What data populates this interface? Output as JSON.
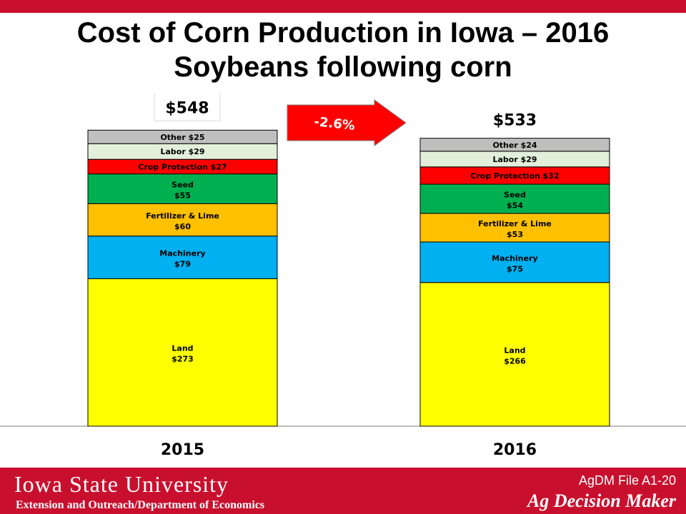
{
  "page": {
    "title_line1": "Cost of Corn Production in Iowa – 2016",
    "title_line2": "Soybeans following corn"
  },
  "chart_data": {
    "type": "bar",
    "stacked": true,
    "categories": [
      "2015",
      "2016"
    ],
    "totals": [
      "$548",
      "$533"
    ],
    "series": [
      {
        "name": "Land",
        "label_name": "Land",
        "color": "#ffff00",
        "values": [
          273,
          266
        ],
        "labels": [
          "$273",
          "$266"
        ]
      },
      {
        "name": "Machinery",
        "label_name": "Machinery",
        "color": "#00b0f0",
        "values": [
          79,
          75
        ],
        "labels": [
          "$79",
          "$75"
        ]
      },
      {
        "name": "Fertilizer & Lime",
        "label_name": "Fertilizer & Lime",
        "color": "#ffc000",
        "values": [
          60,
          53
        ],
        "labels": [
          "$60",
          "$53"
        ]
      },
      {
        "name": "Seed",
        "label_name": "Seed",
        "color": "#00b050",
        "values": [
          55,
          54
        ],
        "labels": [
          "$55",
          "$54"
        ]
      },
      {
        "name": "Crop Protection",
        "label_name": "Crop Protection",
        "color": "#ff0000",
        "values": [
          27,
          32
        ],
        "labels": [
          "$27",
          "$32"
        ]
      },
      {
        "name": "Labor",
        "label_name": "Labor",
        "color": "#e2efda",
        "values": [
          29,
          29
        ],
        "labels": [
          "$29",
          "$29"
        ]
      },
      {
        "name": "Other",
        "label_name": "Other",
        "color": "#bfbfbf",
        "values": [
          25,
          24
        ],
        "labels": [
          "$25",
          "$24"
        ]
      }
    ],
    "change_annotation": "-2.6%",
    "arrow_color": "#ff0000"
  },
  "footer": {
    "university": "Iowa State University",
    "extension": "Extension and Outreach/Department  of Economics",
    "file_id": "AgDM File A1-20",
    "program": "Ag Decision Maker"
  }
}
